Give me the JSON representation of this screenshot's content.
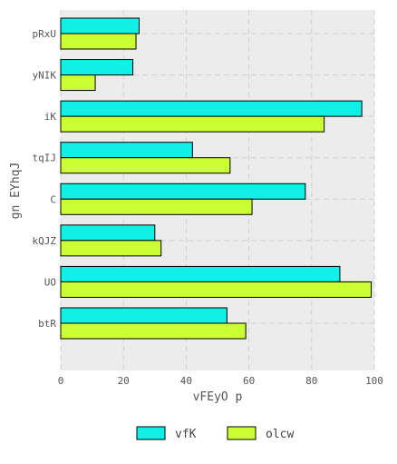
{
  "chart_data": {
    "type": "bar",
    "orientation": "horizontal",
    "title": "",
    "xlabel": "vFEyO p",
    "ylabel": "gn EYhqJ",
    "categories": [
      "pRxU",
      "yNIK",
      "iK",
      "tqIJ",
      "C",
      "kQJZ",
      "UO",
      "btR"
    ],
    "series": [
      {
        "name": "vfK",
        "color": "#11f0e6",
        "values": [
          25,
          23,
          96,
          42,
          78,
          30,
          89,
          53
        ]
      },
      {
        "name": "olcw",
        "color": "#ccff33",
        "values": [
          24,
          11,
          84,
          54,
          61,
          32,
          99,
          59
        ]
      }
    ],
    "xlim": [
      0,
      100
    ],
    "xticks": [
      0,
      20,
      40,
      60,
      80,
      100
    ],
    "grid": true,
    "legend_position": "bottom"
  }
}
